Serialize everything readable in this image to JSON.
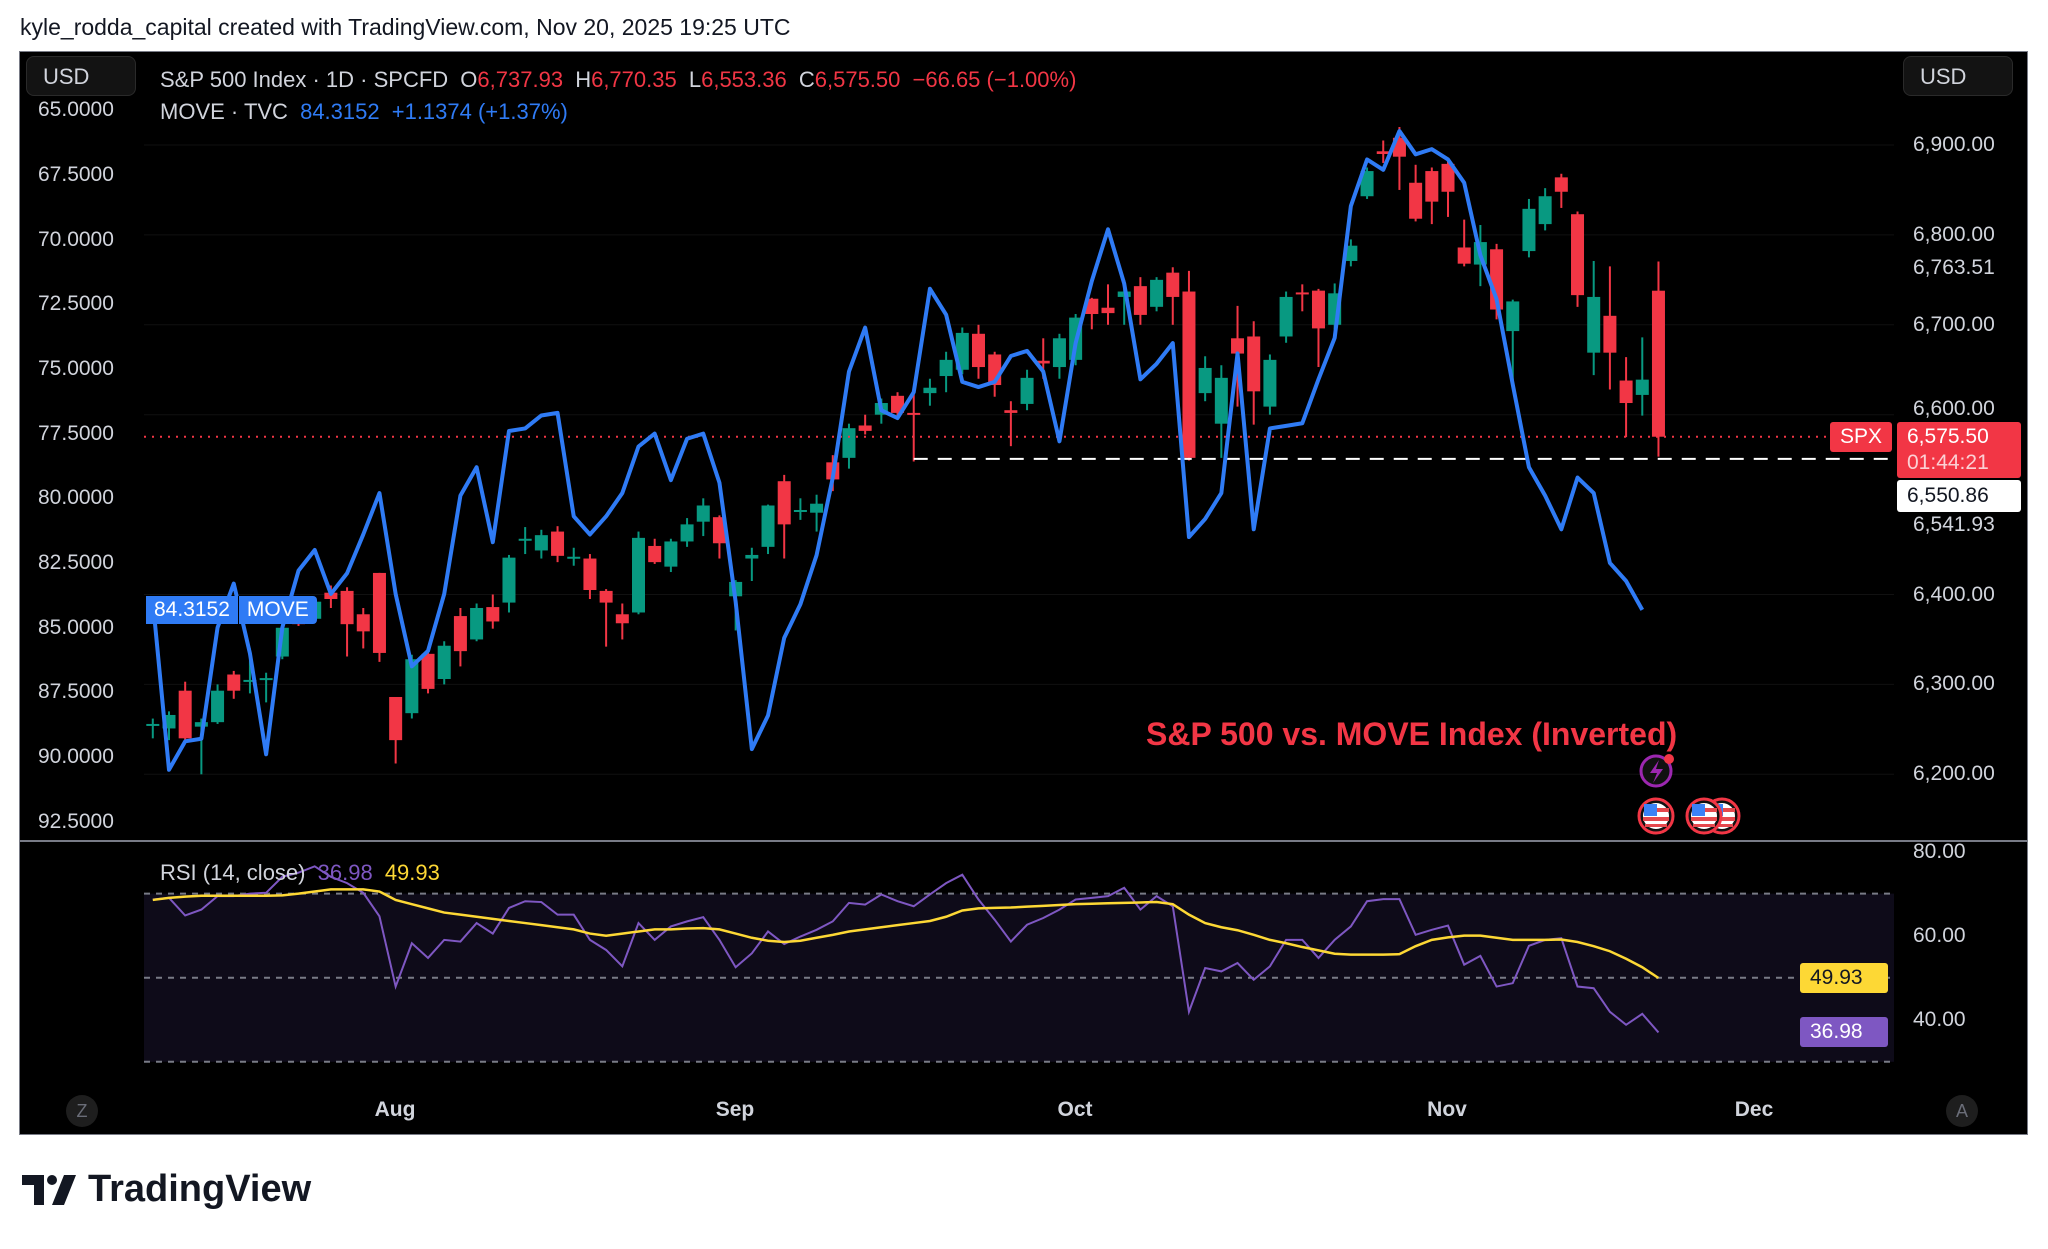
{
  "header": {
    "attribution": "kyle_rodda_capital created with TradingView.com, Nov 20, 2025 19:25 UTC"
  },
  "currency_left": "USD",
  "currency_right": "USD",
  "legend": {
    "spx": {
      "name": "S&P 500 Index · 1D · SPCFD",
      "o_label": "O",
      "o": "6,737.93",
      "h_label": "H",
      "h": "6,770.35",
      "l_label": "L",
      "l": "6,553.36",
      "c_label": "C",
      "c": "6,575.50",
      "change": "−66.65 (−1.00%)"
    },
    "move": {
      "name": "MOVE · TVC",
      "value": "84.3152",
      "change": "+1.1374 (+1.37%)"
    },
    "rsi": {
      "name": "RSI (14, close)",
      "value": "36.98",
      "ma": "49.93"
    }
  },
  "tags": {
    "move_value": "84.3152",
    "move_name": "MOVE",
    "spx_name": "SPX",
    "spx_price": "6,575.50",
    "countdown": "01:44:21",
    "dashed_level": "6,550.86",
    "rsi_ma": "49.93",
    "rsi": "36.98"
  },
  "annotation": "S&P 500 vs. MOVE Index (Inverted)",
  "time_axis": [
    "Aug",
    "Sep",
    "Oct",
    "Nov",
    "Dec"
  ],
  "buttons": {
    "z": "Z",
    "a": "A"
  },
  "brand": "TradingView",
  "colors": {
    "up": "#089981",
    "down": "#f23645",
    "move": "#2f7bf5",
    "rsi": "#7e57c2",
    "rsi_ma": "#fdd835",
    "background": "#000000"
  },
  "icons": [
    "lightning-event-icon",
    "us-flag-event-icon"
  ],
  "chart_data": [
    {
      "type": "candlestick",
      "series_name": "S&P 500 Index · 1D · SPCFD",
      "x_ticks": [
        "Aug",
        "Sep",
        "Oct",
        "Nov",
        "Dec"
      ],
      "y_right_ticks": [
        {
          "value": 6900,
          "label": "6,900.00"
        },
        {
          "value": 6800,
          "label": "6,800.00"
        },
        {
          "value": 6763.51,
          "label": "6,763.51"
        },
        {
          "value": 6700,
          "label": "6,700.00"
        },
        {
          "value": 6600,
          "label": "6,600.00"
        },
        {
          "value": 6541.93,
          "label": "6,541.93"
        },
        {
          "value": 6400,
          "label": "6,400.00"
        },
        {
          "value": 6300,
          "label": "6,300.00"
        },
        {
          "value": 6200,
          "label": "6,200.00"
        }
      ],
      "last_price": 6575.5,
      "dashed_level": 6550.86,
      "dashed_level_start_bar": 47,
      "ohlc": [
        [
          6254,
          6262,
          6240,
          6256
        ],
        [
          6251,
          6270,
          6238,
          6266
        ],
        [
          6293,
          6303,
          6235,
          6240
        ],
        [
          6253,
          6262,
          6200,
          6258
        ],
        [
          6258,
          6300,
          6256,
          6293
        ],
        [
          6311,
          6315,
          6284,
          6293
        ],
        [
          6303,
          6340,
          6290,
          6305
        ],
        [
          6305,
          6313,
          6280,
          6307
        ],
        [
          6331,
          6368,
          6328,
          6363
        ],
        [
          6372,
          6380,
          6365,
          6367
        ],
        [
          6373,
          6395,
          6372,
          6392
        ],
        [
          6402,
          6410,
          6385,
          6395
        ],
        [
          6404,
          6408,
          6331,
          6367
        ],
        [
          6378,
          6385,
          6340,
          6359
        ],
        [
          6424,
          6424,
          6325,
          6335
        ],
        [
          6286,
          6286,
          6212,
          6238
        ],
        [
          6268,
          6333,
          6262,
          6328
        ],
        [
          6334,
          6340,
          6290,
          6295
        ],
        [
          6306,
          6348,
          6300,
          6343
        ],
        [
          6376,
          6385,
          6320,
          6337
        ],
        [
          6350,
          6390,
          6348,
          6385
        ],
        [
          6386,
          6400,
          6362,
          6370
        ],
        [
          6391,
          6444,
          6380,
          6441
        ],
        [
          6460,
          6475,
          6445,
          6462
        ],
        [
          6449,
          6472,
          6440,
          6466
        ],
        [
          6470,
          6476,
          6436,
          6443
        ],
        [
          6440,
          6452,
          6432,
          6442
        ],
        [
          6440,
          6445,
          6395,
          6405
        ],
        [
          6404,
          6406,
          6342,
          6391
        ],
        [
          6378,
          6390,
          6350,
          6368
        ],
        [
          6380,
          6470,
          6378,
          6463
        ],
        [
          6454,
          6462,
          6434,
          6436
        ],
        [
          6431,
          6462,
          6425,
          6459
        ],
        [
          6459,
          6485,
          6453,
          6478
        ],
        [
          6481,
          6507,
          6465,
          6499
        ],
        [
          6486,
          6488,
          6440,
          6457
        ],
        [
          6398,
          6416,
          6360,
          6414
        ],
        [
          6440,
          6452,
          6415,
          6444
        ],
        [
          6453,
          6500,
          6445,
          6499
        ],
        [
          6526,
          6533,
          6440,
          6478
        ],
        [
          6494,
          6507,
          6483,
          6494
        ],
        [
          6491,
          6511,
          6470,
          6501
        ],
        [
          6547,
          6555,
          6515,
          6528
        ],
        [
          6552,
          6590,
          6540,
          6585
        ],
        [
          6588,
          6600,
          6578,
          6582
        ],
        [
          6600,
          6618,
          6590,
          6613
        ],
        [
          6621,
          6625,
          6598,
          6602
        ],
        [
          6602,
          6625,
          6548,
          6600
        ],
        [
          6624,
          6640,
          6610,
          6630
        ],
        [
          6643,
          6670,
          6625,
          6661
        ],
        [
          6650,
          6697,
          6645,
          6691
        ],
        [
          6690,
          6700,
          6640,
          6653
        ],
        [
          6667,
          6670,
          6620,
          6633
        ],
        [
          6605,
          6615,
          6565,
          6602
        ],
        [
          6612,
          6650,
          6605,
          6641
        ],
        [
          6660,
          6685,
          6640,
          6657
        ],
        [
          6653,
          6690,
          6640,
          6685
        ],
        [
          6661,
          6712,
          6655,
          6708
        ],
        [
          6729,
          6730,
          6695,
          6712
        ],
        [
          6719,
          6745,
          6700,
          6713
        ],
        [
          6731,
          6750,
          6700,
          6737
        ],
        [
          6743,
          6753,
          6700,
          6711
        ],
        [
          6720,
          6753,
          6715,
          6750
        ],
        [
          6758,
          6764,
          6700,
          6731
        ],
        [
          6737,
          6760,
          6549,
          6552
        ],
        [
          6624,
          6665,
          6615,
          6652
        ],
        [
          6590,
          6655,
          6552,
          6641
        ],
        [
          6685,
          6721,
          6609,
          6668
        ],
        [
          6687,
          6704,
          6589,
          6626
        ],
        [
          6609,
          6667,
          6600,
          6661
        ],
        [
          6687,
          6737,
          6680,
          6731
        ],
        [
          6736,
          6745,
          6715,
          6734
        ],
        [
          6738,
          6740,
          6653,
          6696
        ],
        [
          6700,
          6746,
          6695,
          6735
        ],
        [
          6771,
          6795,
          6765,
          6788
        ],
        [
          6843,
          6875,
          6840,
          6871
        ],
        [
          6893,
          6905,
          6880,
          6890
        ],
        [
          6908,
          6920,
          6850,
          6887
        ],
        [
          6858,
          6878,
          6815,
          6818
        ],
        [
          6871,
          6875,
          6812,
          6837
        ],
        [
          6879,
          6882,
          6820,
          6848
        ],
        [
          6786,
          6817,
          6765,
          6768
        ],
        [
          6767,
          6811,
          6743,
          6792
        ],
        [
          6784,
          6790,
          6706,
          6717
        ],
        [
          6693,
          6728,
          6630,
          6726
        ],
        [
          6782,
          6840,
          6775,
          6829
        ],
        [
          6812,
          6852,
          6805,
          6843
        ],
        [
          6864,
          6868,
          6830,
          6848
        ],
        [
          6823,
          6826,
          6720,
          6733
        ],
        [
          6669,
          6771,
          6644,
          6731
        ],
        [
          6710,
          6765,
          6628,
          6669
        ],
        [
          6638,
          6664,
          6575,
          6613
        ],
        [
          6622,
          6686,
          6599,
          6639
        ],
        [
          6737.93,
          6770.35,
          6553.36,
          6575.5
        ]
      ]
    },
    {
      "type": "line",
      "series_name": "MOVE · TVC",
      "inverted_axis": true,
      "y_left_ticks": [
        "65.0000",
        "67.5000",
        "70.0000",
        "72.5000",
        "75.0000",
        "77.5000",
        "80.0000",
        "82.5000",
        "85.0000",
        "87.5000",
        "90.0000",
        "92.5000"
      ],
      "values": [
        83.96,
        90.5,
        89.4,
        89.3,
        85.0,
        83.3,
        86.0,
        89.9,
        85.0,
        82.8,
        82.0,
        83.7,
        82.9,
        81.4,
        79.8,
        83.7,
        86.5,
        85.9,
        83.7,
        79.9,
        78.8,
        81.7,
        77.4,
        77.3,
        76.8,
        76.7,
        80.7,
        81.4,
        80.7,
        79.8,
        78.0,
        77.5,
        79.3,
        77.7,
        77.5,
        79.4,
        84.0,
        89.7,
        88.4,
        85.4,
        84.1,
        82.2,
        79.2,
        75.1,
        73.4,
        76.6,
        76.9,
        75.9,
        71.9,
        72.9,
        75.5,
        75.7,
        75.5,
        74.5,
        74.3,
        75.1,
        77.8,
        74.0,
        71.6,
        69.6,
        71.7,
        75.4,
        74.8,
        74.0,
        81.5,
        80.8,
        79.8,
        74.4,
        81.2,
        77.3,
        77.2,
        77.1,
        75.4,
        73.8,
        68.7,
        66.9,
        67.3,
        65.8,
        66.7,
        66.5,
        66.9,
        67.8,
        70.6,
        72.3,
        75.6,
        78.8,
        79.9,
        81.2,
        79.2,
        79.8,
        82.5,
        83.2,
        84.3152,
        null
      ]
    },
    {
      "type": "line",
      "series_name": "RSI (14, close)",
      "y_right_ticks": [
        "80.00",
        "60.00",
        "40.00"
      ],
      "bands": [
        70,
        50,
        30
      ],
      "rsi": [
        68.6,
        69,
        64.8,
        66.2,
        69.4,
        69.4,
        70,
        70.2,
        74,
        75,
        76.5,
        74,
        72.5,
        70.2,
        64.6,
        47.9,
        58.2,
        54.7,
        59,
        58.6,
        63,
        60.5,
        66.6,
        68.2,
        68,
        65,
        65,
        59,
        56.6,
        52.7,
        63,
        59,
        62.2,
        63.4,
        64.4,
        59,
        52.5,
        55.8,
        61,
        58,
        59.8,
        61.4,
        63.4,
        67.8,
        67.4,
        69.8,
        68.2,
        67,
        69.8,
        72.5,
        74.5,
        68.6,
        63.8,
        58.6,
        62.6,
        64.2,
        66.2,
        68.6,
        69,
        69.4,
        71.4,
        66.2,
        69.4,
        67,
        41.9,
        52.3,
        51.5,
        53.5,
        49.5,
        52.7,
        59,
        59,
        54.7,
        59,
        62.2,
        68.2,
        68.7,
        68.7,
        60.2,
        61.4,
        62.4,
        53.1,
        55.2,
        47.9,
        48.7,
        57.6,
        59,
        59.4,
        47.9,
        47.5,
        41.9,
        38.8,
        41.4,
        36.98
      ],
      "rsi_ma": [
        68.5,
        69,
        69.3,
        69.5,
        69.5,
        69.5,
        69.5,
        69.5,
        69.6,
        70,
        70.5,
        71,
        71,
        71,
        70.5,
        68.5,
        67.5,
        66.5,
        65.5,
        65,
        64.5,
        64,
        63.5,
        63,
        62.5,
        62,
        61.5,
        60.5,
        60,
        60.5,
        61,
        61.5,
        61.5,
        61.7,
        61.8,
        61.5,
        60.5,
        59.5,
        58.8,
        58.5,
        58.8,
        59.5,
        60.2,
        61,
        61.5,
        62,
        62.5,
        63,
        63.5,
        64.5,
        66,
        66.5,
        66.6,
        66.7,
        66.9,
        67.1,
        67.3,
        67.5,
        67.6,
        67.7,
        67.8,
        67.9,
        68,
        67.5,
        65,
        63,
        62,
        61.3,
        60.2,
        59,
        58.2,
        57.3,
        56.5,
        55.7,
        55.5,
        55.5,
        55.5,
        55.6,
        57.5,
        59,
        59.6,
        60,
        60,
        59.5,
        59,
        59,
        59,
        59.1,
        58.5,
        57.5,
        56.3,
        54.5,
        52.5,
        49.93
      ]
    }
  ]
}
